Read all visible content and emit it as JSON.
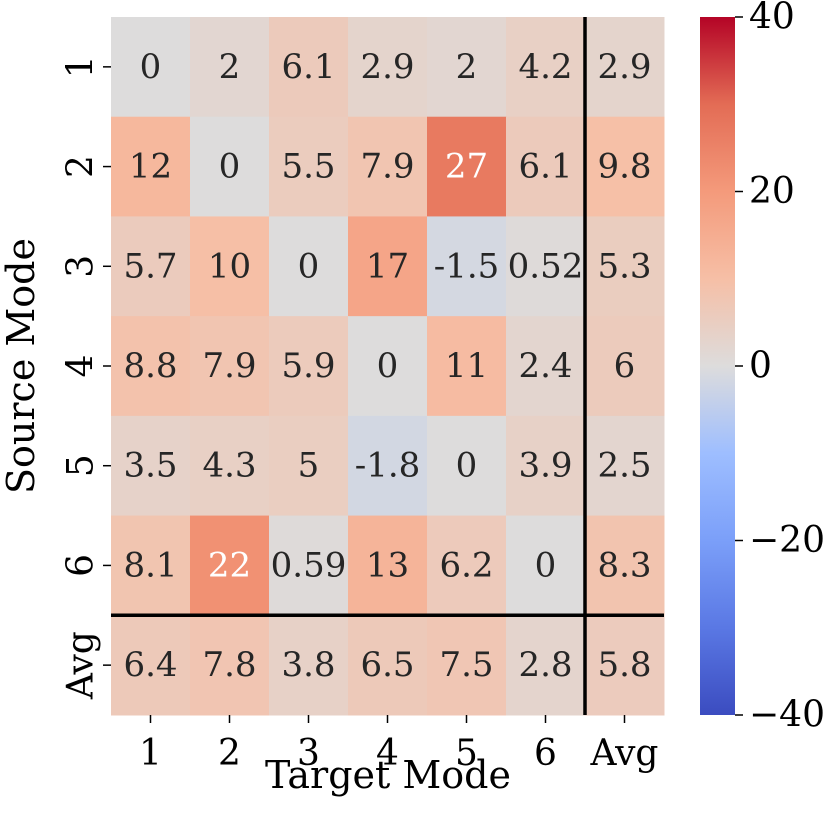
{
  "chart_data": {
    "type": "heatmap",
    "xlabel": "Target Mode",
    "ylabel": "Source Mode",
    "x_categories": [
      "1",
      "2",
      "3",
      "4",
      "5",
      "6",
      "Avg"
    ],
    "y_categories": [
      "1",
      "2",
      "3",
      "4",
      "5",
      "6",
      "Avg"
    ],
    "values": [
      [
        0,
        2,
        6.1,
        2.9,
        2,
        4.2,
        2.9
      ],
      [
        12,
        0,
        5.5,
        7.9,
        27,
        6.1,
        9.8
      ],
      [
        5.7,
        10,
        0,
        17,
        -1.5,
        0.52,
        5.3
      ],
      [
        8.8,
        7.9,
        5.9,
        0,
        11,
        2.4,
        6
      ],
      [
        3.5,
        4.3,
        5,
        -1.8,
        0,
        3.9,
        2.5
      ],
      [
        8.1,
        22,
        0.59,
        13,
        6.2,
        0,
        8.3
      ],
      [
        6.4,
        7.8,
        3.8,
        6.5,
        7.5,
        2.8,
        5.8
      ]
    ],
    "value_labels": [
      [
        "0",
        "2",
        "6.1",
        "2.9",
        "2",
        "4.2",
        "2.9"
      ],
      [
        "12",
        "0",
        "5.5",
        "7.9",
        "27",
        "6.1",
        "9.8"
      ],
      [
        "5.7",
        "10",
        "0",
        "17",
        "-1.5",
        "0.52",
        "5.3"
      ],
      [
        "8.8",
        "7.9",
        "5.9",
        "0",
        "11",
        "2.4",
        "6"
      ],
      [
        "3.5",
        "4.3",
        "5",
        "-1.8",
        "0",
        "3.9",
        "2.5"
      ],
      [
        "8.1",
        "22",
        "0.59",
        "13",
        "6.2",
        "0",
        "8.3"
      ],
      [
        "6.4",
        "7.8",
        "3.8",
        "6.5",
        "7.5",
        "2.8",
        "5.8"
      ]
    ],
    "colorbar": {
      "colormap": "coolwarm",
      "range": [
        -40,
        40
      ],
      "ticks": [
        40,
        20,
        0,
        -20,
        -40
      ],
      "tick_labels": [
        "40",
        "20",
        "0",
        "−20",
        "−40"
      ]
    },
    "separators": [
      "vertical line before Avg column",
      "horizontal line above Avg row"
    ]
  }
}
